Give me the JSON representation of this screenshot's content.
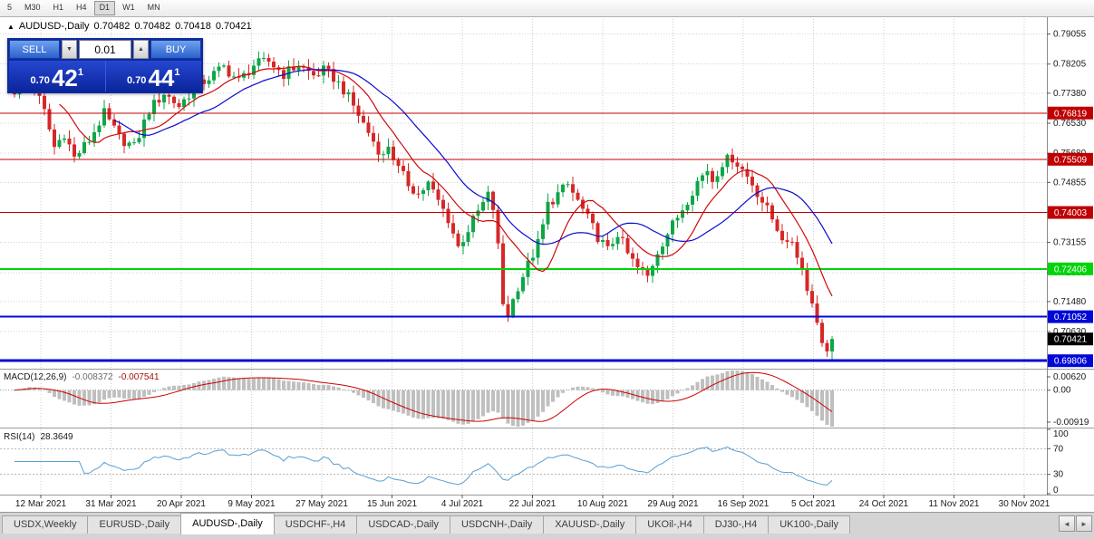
{
  "toolbar": {
    "timeframes": [
      "5",
      "M30",
      "H1",
      "H4",
      "D1",
      "W1",
      "MN"
    ],
    "active": "D1"
  },
  "chart": {
    "title": "AUDUSD-,Daily",
    "open": "0.70482",
    "high": "0.70482",
    "low": "0.70418",
    "close": "0.70421",
    "trade": {
      "sell_label": "SELL",
      "buy_label": "BUY",
      "volume": "0.01",
      "sell_small": "0.70",
      "sell_big": "42",
      "sell_sup": "1",
      "buy_small": "0.70",
      "buy_big": "44",
      "buy_sup": "1",
      "spin_down": "▼",
      "spin_up": "▲"
    }
  },
  "chart_data": {
    "type": "candlestick",
    "symbol": "AUDUSD-",
    "period": "Daily",
    "bars": 165,
    "anchors": [
      [
        0,
        0.7745
      ],
      [
        3,
        0.779
      ],
      [
        6,
        0.7685
      ],
      [
        8,
        0.7585
      ],
      [
        10,
        0.7625
      ],
      [
        12,
        0.7555
      ],
      [
        15,
        0.7605
      ],
      [
        18,
        0.768
      ],
      [
        21,
        0.7612
      ],
      [
        24,
        0.7585
      ],
      [
        27,
        0.769
      ],
      [
        30,
        0.7738
      ],
      [
        33,
        0.7702
      ],
      [
        36,
        0.7752
      ],
      [
        39,
        0.7782
      ],
      [
        42,
        0.7812
      ],
      [
        45,
        0.7772
      ],
      [
        48,
        0.7818
      ],
      [
        51,
        0.7828
      ],
      [
        54,
        0.7792
      ],
      [
        57,
        0.7818
      ],
      [
        60,
        0.7788
      ],
      [
        62,
        0.7802
      ],
      [
        64,
        0.7782
      ],
      [
        66,
        0.7748
      ],
      [
        68,
        0.7702
      ],
      [
        70,
        0.7652
      ],
      [
        72,
        0.7602
      ],
      [
        74,
        0.7558
      ],
      [
        75,
        0.7592
      ],
      [
        77,
        0.7522
      ],
      [
        79,
        0.7482
      ],
      [
        81,
        0.7452
      ],
      [
        83,
        0.7482
      ],
      [
        85,
        0.7432
      ],
      [
        87,
        0.7382
      ],
      [
        89,
        0.7302
      ],
      [
        91,
        0.7352
      ],
      [
        93,
        0.7402
      ],
      [
        95,
        0.7448
      ],
      [
        96,
        0.7412
      ],
      [
        97,
        0.7302
      ],
      [
        98,
        0.7142
      ],
      [
        99,
        0.7112
      ],
      [
        101,
        0.7192
      ],
      [
        103,
        0.7252
      ],
      [
        105,
        0.7312
      ],
      [
        106,
        0.7362
      ],
      [
        107,
        0.7422
      ],
      [
        109,
        0.7452
      ],
      [
        111,
        0.7478
      ],
      [
        113,
        0.7432
      ],
      [
        115,
        0.7382
      ],
      [
        117,
        0.7332
      ],
      [
        119,
        0.7292
      ],
      [
        121,
        0.7342
      ],
      [
        123,
        0.7282
      ],
      [
        125,
        0.7242
      ],
      [
        127,
        0.7218
      ],
      [
        129,
        0.7292
      ],
      [
        131,
        0.7342
      ],
      [
        133,
        0.7388
      ],
      [
        135,
        0.7438
      ],
      [
        137,
        0.7488
      ],
      [
        139,
        0.7522
      ],
      [
        140,
        0.7492
      ],
      [
        142,
        0.7542
      ],
      [
        144,
        0.7556
      ],
      [
        146,
        0.7522
      ],
      [
        148,
        0.7482
      ],
      [
        150,
        0.7432
      ],
      [
        152,
        0.7382
      ],
      [
        154,
        0.7332
      ],
      [
        155,
        0.7302
      ],
      [
        156,
        0.7322
      ],
      [
        157,
        0.7282
      ],
      [
        158,
        0.7242
      ],
      [
        159,
        0.7192
      ],
      [
        160,
        0.7142
      ],
      [
        161,
        0.7092
      ],
      [
        162,
        0.7042
      ],
      [
        163,
        0.6998
      ],
      [
        164,
        0.70421
      ]
    ],
    "noise_amp": 0.0016,
    "wick_amp": 0.0022,
    "y_range": [
      0.6958,
      0.7948
    ],
    "y_ticks": [
      "0.79055",
      "0.78205",
      "0.77380",
      "0.76530",
      "0.75680",
      "0.74855",
      "0.74005",
      "0.73155",
      "0.72305",
      "0.71480",
      "0.70630"
    ],
    "x_labels": [
      "12 Mar 2021",
      "31 Mar 2021",
      "20 Apr 2021",
      "9 May 2021",
      "27 May 2021",
      "15 Jun 2021",
      "4 Jul 2021",
      "22 Jul 2021",
      "10 Aug 2021",
      "29 Aug 2021",
      "16 Sep 2021",
      "5 Oct 2021",
      "24 Oct 2021",
      "11 Nov 2021",
      "30 Nov 2021"
    ],
    "levels": [
      {
        "price": 0.76819,
        "label": "0.76819",
        "color": "#c00000",
        "width": 1
      },
      {
        "price": 0.75509,
        "label": "0.75509",
        "color": "#c00000",
        "width": 1
      },
      {
        "price": 0.74003,
        "label": "0.74003",
        "color": "#c00000",
        "width": 1
      },
      {
        "price": 0.72406,
        "label": "0.72406",
        "color": "#00d40a",
        "width": 2
      },
      {
        "price": 0.71052,
        "label": "0.71052",
        "color": "#0008d6",
        "width": 2
      },
      {
        "price": 0.69806,
        "label": "0.69806",
        "color": "#0008d6",
        "width": 3
      }
    ],
    "current": {
      "price": 0.70421,
      "label": "0.70421",
      "color": "#000000"
    },
    "ma": [
      {
        "period": 10,
        "color": "#cf0a0a"
      },
      {
        "period": 21,
        "color": "#0a0acf"
      }
    ],
    "candle_up_color": "#0fa648",
    "candle_down_color": "#d62828",
    "macd": {
      "name": "MACD(12,26,9)",
      "value_main": "-0.008372",
      "value_signal": "-0.007541",
      "fast": 12,
      "slow": 26,
      "signal_period": 9,
      "ticks": [
        "0.00620",
        "0.00",
        "-0.00919"
      ],
      "hist_color": "#bfbfbf",
      "signal_color": "#cc0000"
    },
    "rsi": {
      "name": "RSI(14)",
      "value": "28.3649",
      "period": 14,
      "ticks": [
        "100",
        "70",
        "30",
        "0"
      ],
      "levels": [
        70,
        30
      ],
      "line_color": "#569fd6"
    }
  },
  "tabs": {
    "items": [
      "USDX,Weekly",
      "EURUSD-,Daily",
      "AUDUSD-,Daily",
      "USDCHF-,H4",
      "USDCAD-,Daily",
      "USDCNH-,Daily",
      "XAUUSD-,Daily",
      "UKOil-,H4",
      "DJ30-,H4",
      "UK100-,Daily"
    ],
    "active": "AUDUSD-,Daily",
    "scroll_left": "◄",
    "scroll_right": "►"
  }
}
